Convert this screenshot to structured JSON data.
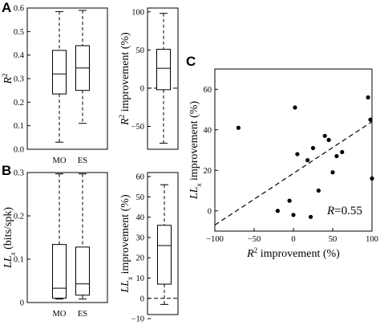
{
  "panels": {
    "A": {
      "letter": "A"
    },
    "B": {
      "letter": "B"
    },
    "C": {
      "letter": "C"
    }
  },
  "chart_data": [
    {
      "id": "A-left",
      "type": "box",
      "categories": [
        "MO",
        "ES"
      ],
      "boxes": [
        {
          "min": 0.03,
          "q1": 0.235,
          "median": 0.32,
          "q3": 0.42,
          "max": 0.585
        },
        {
          "min": 0.11,
          "q1": 0.25,
          "median": 0.345,
          "q3": 0.44,
          "max": 0.59
        }
      ],
      "ylabel_base": "R",
      "ylabel_sup": "2",
      "ylim": [
        0,
        0.6
      ],
      "yticks": [
        "0.0",
        "0.1",
        "0.2",
        "0.3",
        "0.4",
        "0.5",
        "0.6"
      ],
      "grid": false
    },
    {
      "id": "A-right",
      "type": "box",
      "boxes": [
        {
          "min": -72,
          "q1": -2,
          "median": 26,
          "q3": 51,
          "max": 98
        }
      ],
      "ylabel_base": "R",
      "ylabel_sup": "2",
      "ylabel_rest": " improvement (%)",
      "ylim": [
        -80,
        105
      ],
      "yticks": [
        "−50",
        "0",
        "50",
        "100"
      ],
      "zero_line": true,
      "grid": false
    },
    {
      "id": "B-left",
      "type": "box",
      "categories": [
        "MO",
        "ES"
      ],
      "boxes": [
        {
          "min": 0.008,
          "q1": 0.01,
          "median": 0.033,
          "q3": 0.134,
          "max": 0.297
        },
        {
          "min": 0.008,
          "q1": 0.017,
          "median": 0.043,
          "q3": 0.128,
          "max": 0.297
        }
      ],
      "ylabel_base": "LL",
      "ylabel_sub": "x",
      "ylabel_rest": " (bits/spk)",
      "ylim": [
        0,
        0.3
      ],
      "yticks": [
        "0",
        "0.1",
        "0.2",
        "0.3"
      ],
      "grid": false
    },
    {
      "id": "B-right",
      "type": "box",
      "boxes": [
        {
          "min": -3,
          "q1": 7,
          "median": 26,
          "q3": 36,
          "max": 56
        }
      ],
      "ylabel_base": "LL",
      "ylabel_sub": "x",
      "ylabel_rest": " improvement (%)",
      "ylim": [
        -8,
        62
      ],
      "yticks": [
        "−10",
        "0",
        "10",
        "20",
        "30",
        "40",
        "50",
        "60"
      ],
      "zero_line": true,
      "grid": false
    },
    {
      "id": "C",
      "type": "scatter",
      "x": [
        -70,
        -20,
        -5,
        0,
        2,
        5,
        18,
        22,
        25,
        32,
        40,
        45,
        50,
        55,
        62,
        95,
        98,
        100
      ],
      "y": [
        41,
        0,
        5,
        -2,
        51,
        28,
        25,
        -3,
        31,
        10,
        37,
        35,
        19,
        27,
        29,
        56,
        45,
        16
      ],
      "fit_line": {
        "x": [
          -100,
          100
        ],
        "y": [
          -7,
          44
        ]
      },
      "xlabel_base": "R",
      "xlabel_sup": "2",
      "xlabel_rest": " improvement (%)",
      "ylabel_base": "LL",
      "ylabel_sub": "x",
      "ylabel_rest": " improvement (%)",
      "xlim": [
        -100,
        100
      ],
      "ylim": [
        -10,
        70
      ],
      "xticks": [
        "−100",
        "−50",
        "0",
        "50",
        "100"
      ],
      "yticks": [
        "0",
        "20",
        "40",
        "60"
      ],
      "annotation_italic": "R",
      "annotation_value": "=0.55",
      "grid": false
    }
  ]
}
